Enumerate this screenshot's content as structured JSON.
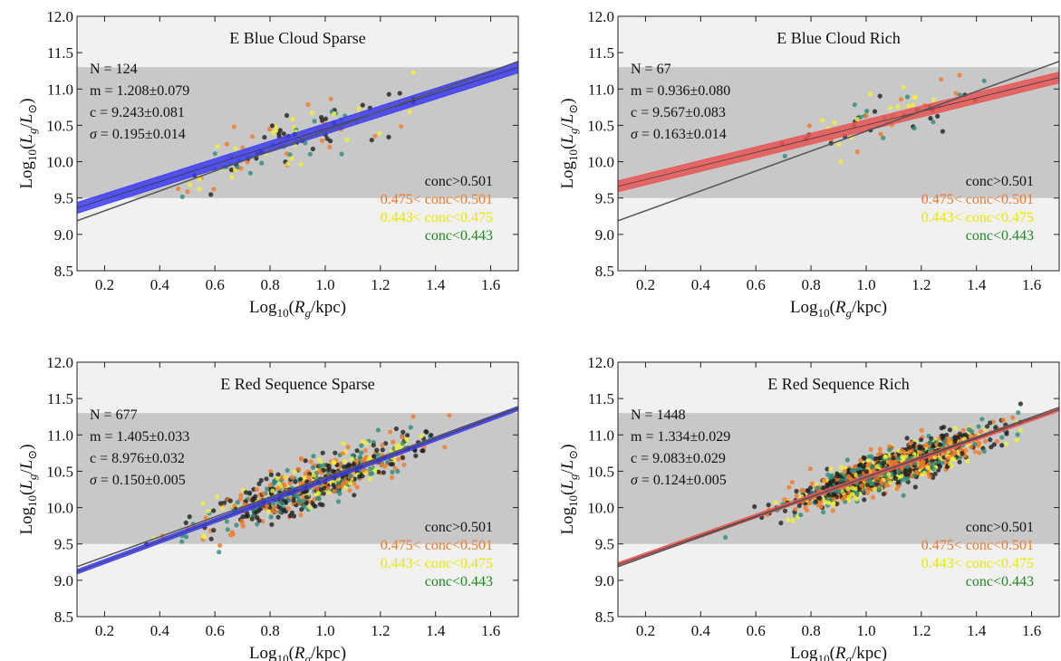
{
  "colors": {
    "outer_band": "#f1f1f1",
    "inner_band": "#c8c8c8",
    "fit_line": "#555555",
    "blue_fit": "#3c3cf0",
    "red_fit": "#e85555",
    "conc_high": "#1f1f1f",
    "conc_mid_high": "#f07a2a",
    "conc_mid_low": "#f4f03a",
    "conc_low": "#2e8b7a"
  },
  "legend": [
    {
      "label": "conc>0.501",
      "color": "#111111",
      "point": "#1f1f1f"
    },
    {
      "label": "0.475< conc<0.501",
      "color": "#f07a2a",
      "point": "#f07a2a"
    },
    {
      "label": "0.443< conc<0.475",
      "color": "#e8e800",
      "point": "#f4f03a"
    },
    {
      "label": "conc<0.443",
      "color": "#1a8a1a",
      "point": "#2e8b7a"
    }
  ],
  "chart_data": [
    {
      "type": "scatter",
      "title": "E Blue Cloud Sparse",
      "xlabel": "Log10(Rg/kpc)",
      "ylabel": "Log10(Lg/L⊙)",
      "xlim": [
        0.1,
        1.7
      ],
      "ylim": [
        8.5,
        12.0
      ],
      "x_ticks": [
        "0.2",
        "0.4",
        "0.6",
        "0.8",
        "1.0",
        "1.2",
        "1.4",
        "1.6"
      ],
      "y_ticks": [
        "8.5",
        "9.0",
        "9.5",
        "10.0",
        "10.5",
        "11.0",
        "11.5",
        "12.0"
      ],
      "shaded_band": [
        9.5,
        11.3
      ],
      "grid": false,
      "legend_position": "bottom-right",
      "stats": {
        "n": "N = 124",
        "m": "m = 1.208±0.079",
        "c": "c = 9.243±0.081",
        "sigma": "σ = 0.195±0.014"
      },
      "fit": {
        "slope": 1.208,
        "intercept": 9.243,
        "slope_err": 0.079,
        "intercept_err": 0.081,
        "band_color": "blue"
      },
      "reference_line": {
        "slope": 1.37,
        "intercept": 9.05
      },
      "points": {
        "count": 124,
        "x_mean": 0.88,
        "x_sd": 0.22,
        "x_range": [
          0.33,
          1.32
        ],
        "scatter": 0.195,
        "seed": 11
      }
    },
    {
      "type": "scatter",
      "title": "E Blue Cloud Rich",
      "xlabel": "Log10(Rg/kpc)",
      "ylabel": "Log10(Lg/L⊙)",
      "xlim": [
        0.1,
        1.7
      ],
      "ylim": [
        8.5,
        12.0
      ],
      "x_ticks": [
        "0.2",
        "0.4",
        "0.6",
        "0.8",
        "1.0",
        "1.2",
        "1.4",
        "1.6"
      ],
      "y_ticks": [
        "8.5",
        "9.0",
        "9.5",
        "10.0",
        "10.5",
        "11.0",
        "11.5",
        "12.0"
      ],
      "shaded_band": [
        9.5,
        11.3
      ],
      "grid": false,
      "legend_position": "bottom-right",
      "stats": {
        "n": "N = 67",
        "m": "m = 0.936±0.080",
        "c": "c = 9.567±0.083",
        "sigma": "σ = 0.163±0.014"
      },
      "fit": {
        "slope": 0.936,
        "intercept": 9.567,
        "slope_err": 0.08,
        "intercept_err": 0.083,
        "band_color": "red"
      },
      "reference_line": {
        "slope": 1.37,
        "intercept": 9.05
      },
      "points": {
        "count": 67,
        "x_mean": 1.1,
        "x_sd": 0.18,
        "x_range": [
          0.52,
          1.44
        ],
        "scatter": 0.163,
        "seed": 23
      }
    },
    {
      "type": "scatter",
      "title": "E Red Sequence Sparse",
      "xlabel": "Log10(Rg/kpc)",
      "ylabel": "Log10(Lg/L⊙)",
      "xlim": [
        0.1,
        1.7
      ],
      "ylim": [
        8.5,
        12.0
      ],
      "x_ticks": [
        "0.2",
        "0.4",
        "0.6",
        "0.8",
        "1.0",
        "1.2",
        "1.4",
        "1.6"
      ],
      "y_ticks": [
        "8.5",
        "9.0",
        "9.5",
        "10.0",
        "10.5",
        "11.0",
        "11.5",
        "12.0"
      ],
      "shaded_band": [
        9.5,
        11.3
      ],
      "grid": false,
      "legend_position": "bottom-right",
      "stats": {
        "n": "N = 677",
        "m": "m = 1.405±0.033",
        "c": "c = 8.976±0.032",
        "sigma": "σ = 0.150±0.005"
      },
      "fit": {
        "slope": 1.405,
        "intercept": 8.976,
        "slope_err": 0.033,
        "intercept_err": 0.032,
        "band_color": "blue"
      },
      "reference_line": {
        "slope": 1.37,
        "intercept": 9.05
      },
      "points": {
        "count": 677,
        "x_mean": 0.97,
        "x_sd": 0.19,
        "x_range": [
          0.25,
          1.45
        ],
        "scatter": 0.15,
        "seed": 37
      }
    },
    {
      "type": "scatter",
      "title": "E Red Sequence Rich",
      "xlabel": "Log10(Rg/kpc)",
      "ylabel": "Log10(Lg/L⊙)",
      "xlim": [
        0.1,
        1.7
      ],
      "ylim": [
        8.5,
        12.0
      ],
      "x_ticks": [
        "0.2",
        "0.4",
        "0.6",
        "0.8",
        "1.0",
        "1.2",
        "1.4",
        "1.6"
      ],
      "y_ticks": [
        "8.5",
        "9.0",
        "9.5",
        "10.0",
        "10.5",
        "11.0",
        "11.5",
        "12.0"
      ],
      "shaded_band": [
        9.5,
        11.3
      ],
      "grid": false,
      "legend_position": "bottom-right",
      "stats": {
        "n": "N = 1448",
        "m": "m = 1.334±0.029",
        "c": "c = 9.083±0.029",
        "sigma": "σ = 0.124±0.005"
      },
      "fit": {
        "slope": 1.334,
        "intercept": 9.083,
        "slope_err": 0.029,
        "intercept_err": 0.029,
        "band_color": "red"
      },
      "reference_line": {
        "slope": 1.37,
        "intercept": 9.05
      },
      "points": {
        "count": 1448,
        "x_mean": 1.08,
        "x_sd": 0.17,
        "x_range": [
          0.28,
          1.56
        ],
        "scatter": 0.124,
        "seed": 53
      }
    }
  ]
}
